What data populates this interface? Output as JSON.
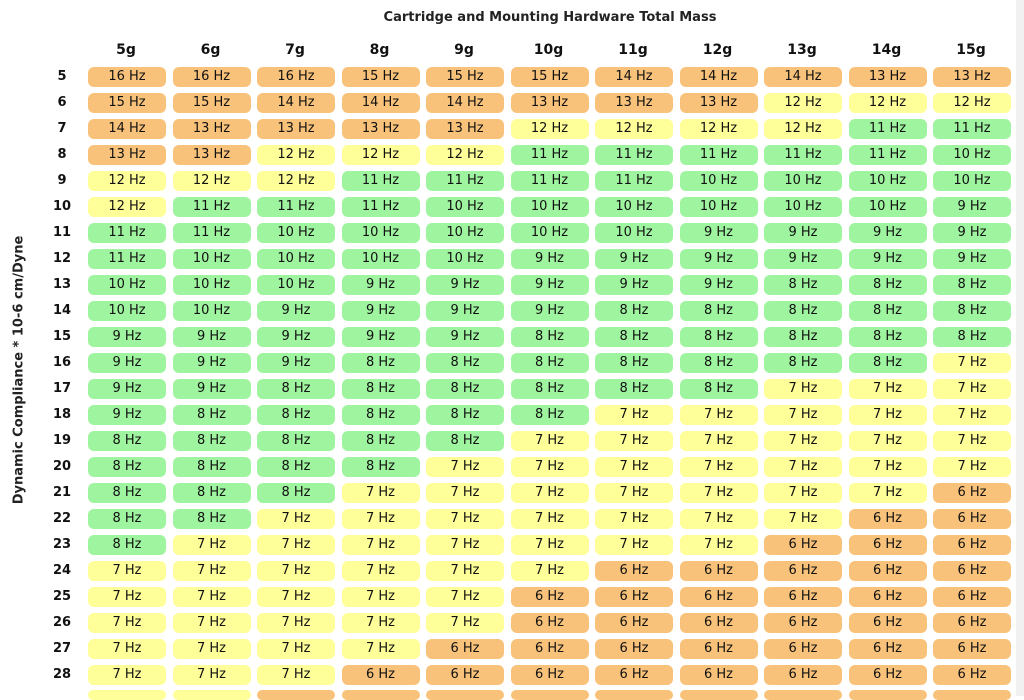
{
  "chart_data": {
    "type": "table",
    "title": "Cartridge and Mounting Hardware Total Mass",
    "ylabel": "Dynamic Compliance * 10-6 cm/Dyne",
    "unit": "Hz",
    "columns": [
      "5g",
      "6g",
      "7g",
      "8g",
      "9g",
      "10g",
      "11g",
      "12g",
      "13g",
      "14g",
      "15g"
    ],
    "rows": [
      {
        "label": "5",
        "values": [
          16,
          16,
          16,
          15,
          15,
          15,
          14,
          14,
          14,
          13,
          13
        ]
      },
      {
        "label": "6",
        "values": [
          15,
          15,
          14,
          14,
          14,
          13,
          13,
          13,
          12,
          12,
          12
        ]
      },
      {
        "label": "7",
        "values": [
          14,
          13,
          13,
          13,
          13,
          12,
          12,
          12,
          12,
          11,
          11
        ]
      },
      {
        "label": "8",
        "values": [
          13,
          13,
          12,
          12,
          12,
          11,
          11,
          11,
          11,
          11,
          10
        ]
      },
      {
        "label": "9",
        "values": [
          12,
          12,
          12,
          11,
          11,
          11,
          11,
          10,
          10,
          10,
          10
        ]
      },
      {
        "label": "10",
        "values": [
          12,
          11,
          11,
          11,
          10,
          10,
          10,
          10,
          10,
          10,
          9
        ]
      },
      {
        "label": "11",
        "values": [
          11,
          11,
          10,
          10,
          10,
          10,
          10,
          9,
          9,
          9,
          9
        ]
      },
      {
        "label": "12",
        "values": [
          11,
          10,
          10,
          10,
          10,
          9,
          9,
          9,
          9,
          9,
          9
        ]
      },
      {
        "label": "13",
        "values": [
          10,
          10,
          10,
          9,
          9,
          9,
          9,
          9,
          8,
          8,
          8
        ]
      },
      {
        "label": "14",
        "values": [
          10,
          10,
          9,
          9,
          9,
          9,
          8,
          8,
          8,
          8,
          8
        ]
      },
      {
        "label": "15",
        "values": [
          9,
          9,
          9,
          9,
          9,
          8,
          8,
          8,
          8,
          8,
          8
        ]
      },
      {
        "label": "16",
        "values": [
          9,
          9,
          9,
          8,
          8,
          8,
          8,
          8,
          8,
          8,
          7
        ]
      },
      {
        "label": "17",
        "values": [
          9,
          9,
          8,
          8,
          8,
          8,
          8,
          8,
          7,
          7,
          7
        ]
      },
      {
        "label": "18",
        "values": [
          9,
          8,
          8,
          8,
          8,
          8,
          7,
          7,
          7,
          7,
          7
        ]
      },
      {
        "label": "19",
        "values": [
          8,
          8,
          8,
          8,
          8,
          7,
          7,
          7,
          7,
          7,
          7
        ]
      },
      {
        "label": "20",
        "values": [
          8,
          8,
          8,
          8,
          7,
          7,
          7,
          7,
          7,
          7,
          7
        ]
      },
      {
        "label": "21",
        "values": [
          8,
          8,
          8,
          7,
          7,
          7,
          7,
          7,
          7,
          7,
          6
        ]
      },
      {
        "label": "22",
        "values": [
          8,
          8,
          7,
          7,
          7,
          7,
          7,
          7,
          7,
          6,
          6
        ]
      },
      {
        "label": "23",
        "values": [
          8,
          7,
          7,
          7,
          7,
          7,
          7,
          7,
          6,
          6,
          6
        ]
      },
      {
        "label": "24",
        "values": [
          7,
          7,
          7,
          7,
          7,
          7,
          6,
          6,
          6,
          6,
          6
        ]
      },
      {
        "label": "25",
        "values": [
          7,
          7,
          7,
          7,
          7,
          6,
          6,
          6,
          6,
          6,
          6
        ]
      },
      {
        "label": "26",
        "values": [
          7,
          7,
          7,
          7,
          7,
          6,
          6,
          6,
          6,
          6,
          6
        ]
      },
      {
        "label": "27",
        "values": [
          7,
          7,
          7,
          7,
          6,
          6,
          6,
          6,
          6,
          6,
          6
        ]
      },
      {
        "label": "28",
        "values": [
          7,
          7,
          7,
          6,
          6,
          6,
          6,
          6,
          6,
          6,
          6
        ]
      }
    ],
    "colors": {
      "high": "#f9c27a",
      "mid": "#ffff99",
      "ok": "#9ff59f"
    }
  }
}
